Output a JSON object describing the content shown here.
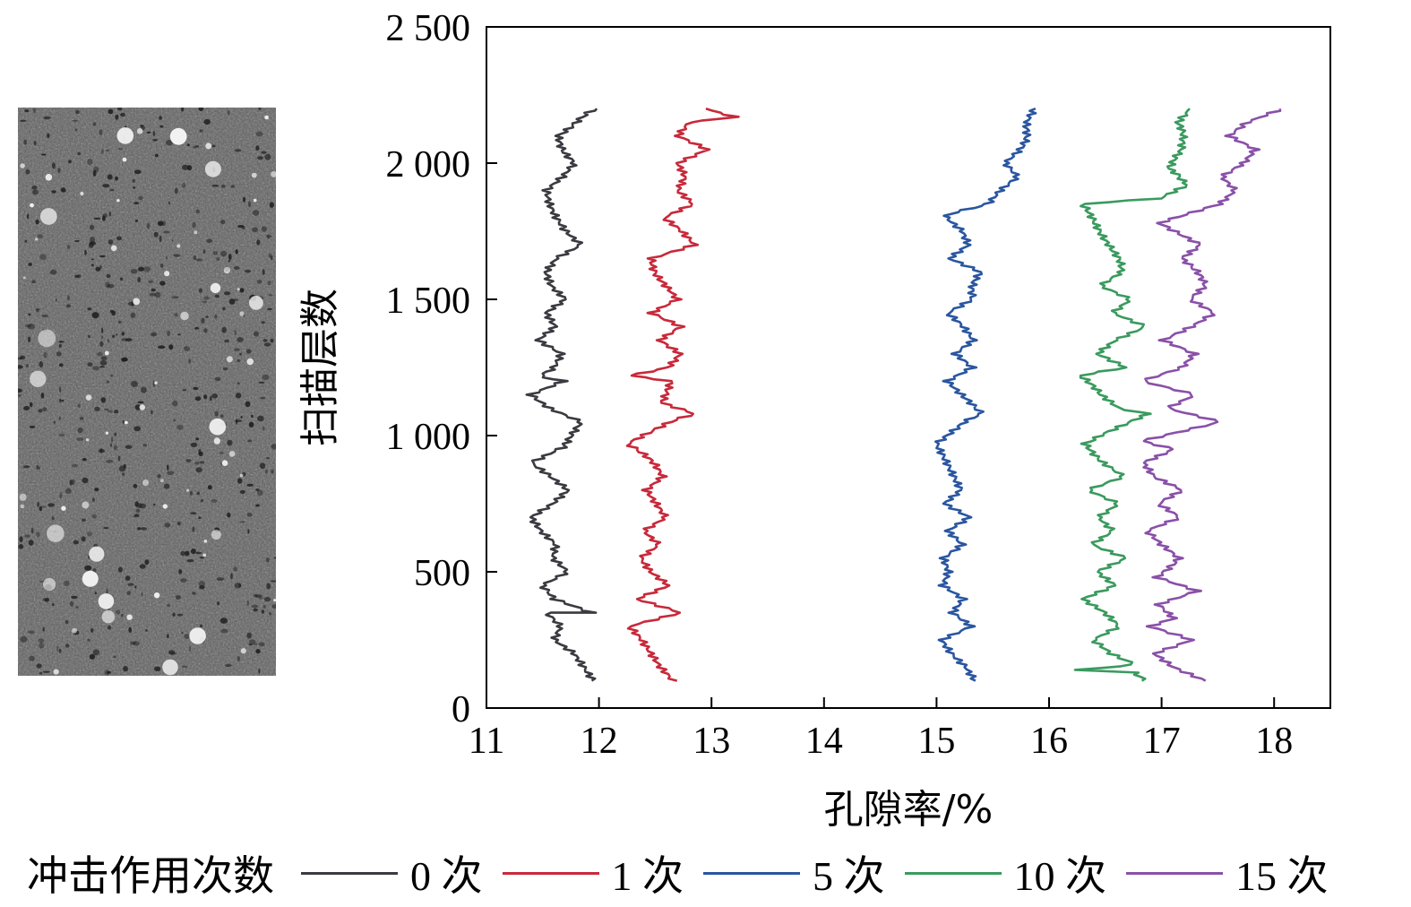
{
  "chart_data": {
    "type": "line",
    "xlabel": "孔隙率/%",
    "ylabel": "扫描层数",
    "xlim": [
      11,
      18.5
    ],
    "ylim": [
      0,
      2500
    ],
    "xticks": [
      "11",
      "12",
      "13",
      "14",
      "15",
      "16",
      "17",
      "18"
    ],
    "yticks": [
      "0",
      "500",
      "1 000",
      "1 500",
      "2 000",
      "2 500"
    ],
    "ytick_values": [
      0,
      500,
      1000,
      1500,
      2000,
      2500
    ],
    "grid": false,
    "legend_title": "冲击作用次数",
    "legend_position": "bottom",
    "series": [
      {
        "name": "0 次",
        "color": "#3a3a40",
        "x": [
          11.93,
          11.85,
          11.78,
          11.62,
          11.68,
          11.55,
          11.95,
          11.6,
          11.48,
          11.7,
          11.58,
          11.62,
          11.5,
          11.42,
          11.6,
          11.72,
          11.55,
          11.38,
          11.63,
          11.72,
          11.86,
          11.58,
          11.4,
          11.68,
          11.48,
          11.58,
          11.65,
          11.45,
          11.62,
          11.55,
          11.72,
          11.58,
          11.52,
          11.6,
          11.82,
          11.7,
          11.63,
          11.58,
          11.55,
          11.68,
          11.77,
          11.62,
          11.98
        ],
        "y": [
          100,
          150,
          200,
          250,
          300,
          350,
          350,
          400,
          450,
          500,
          550,
          600,
          650,
          700,
          750,
          800,
          850,
          900,
          950,
          970,
          1050,
          1100,
          1150,
          1200,
          1220,
          1250,
          1300,
          1350,
          1400,
          1450,
          1500,
          1550,
          1600,
          1650,
          1700,
          1750,
          1800,
          1850,
          1900,
          1950,
          2000,
          2100,
          2200
        ]
      },
      {
        "name": "1 次",
        "color": "#c8293a",
        "x": [
          12.65,
          12.55,
          12.48,
          12.4,
          12.28,
          12.72,
          12.32,
          12.6,
          12.45,
          12.38,
          12.55,
          12.42,
          12.6,
          12.5,
          12.4,
          12.55,
          12.48,
          12.25,
          12.65,
          12.85,
          12.55,
          12.62,
          12.3,
          12.6,
          12.72,
          12.55,
          12.75,
          12.48,
          12.7,
          12.58,
          12.45,
          12.85,
          12.75,
          12.6,
          12.85,
          12.7,
          12.75,
          12.68,
          12.95,
          12.7,
          12.82,
          13.2,
          12.95
        ],
        "y": [
          100,
          150,
          200,
          250,
          300,
          350,
          400,
          450,
          500,
          550,
          600,
          650,
          700,
          750,
          800,
          850,
          900,
          970,
          1050,
          1080,
          1120,
          1200,
          1220,
          1250,
          1300,
          1350,
          1400,
          1450,
          1500,
          1550,
          1650,
          1700,
          1750,
          1800,
          1850,
          1900,
          1950,
          2000,
          2050,
          2100,
          2150,
          2170,
          2200
        ]
      },
      {
        "name": "5 次",
        "color": "#2a56a0",
        "x": [
          15.35,
          15.28,
          15.15,
          15.05,
          15.3,
          15.12,
          15.22,
          15.05,
          15.12,
          15.08,
          15.25,
          15.1,
          15.28,
          15.05,
          15.2,
          14.98,
          15.25,
          15.42,
          15.2,
          15.08,
          15.32,
          15.18,
          15.35,
          15.25,
          15.1,
          15.3,
          15.38,
          15.12,
          15.3,
          15.25,
          15.1,
          15.15,
          15.45,
          15.55,
          15.7,
          15.6,
          15.75,
          15.82,
          15.88
        ],
        "y": [
          100,
          150,
          200,
          250,
          300,
          350,
          400,
          450,
          500,
          550,
          600,
          650,
          700,
          750,
          800,
          970,
          1050,
          1080,
          1150,
          1200,
          1250,
          1300,
          1350,
          1400,
          1450,
          1500,
          1600,
          1650,
          1700,
          1750,
          1800,
          1820,
          1850,
          1900,
          1950,
          2000,
          2050,
          2150,
          2200
        ]
      },
      {
        "name": "10 次",
        "color": "#3a9a5e",
        "x": [
          16.88,
          16.75,
          16.28,
          16.75,
          16.55,
          16.38,
          16.6,
          16.48,
          16.3,
          16.6,
          16.45,
          16.7,
          16.38,
          16.55,
          16.42,
          16.6,
          16.35,
          16.68,
          16.5,
          16.3,
          16.45,
          16.9,
          16.6,
          16.45,
          16.28,
          16.7,
          16.45,
          16.6,
          16.85,
          16.55,
          16.7,
          16.45,
          16.65,
          16.55,
          16.28,
          17.0,
          17.25,
          17.05,
          17.2,
          17.15,
          17.25
        ],
        "y": [
          100,
          130,
          140,
          160,
          200,
          250,
          300,
          350,
          400,
          450,
          500,
          550,
          600,
          650,
          700,
          750,
          800,
          850,
          900,
          970,
          1000,
          1080,
          1100,
          1150,
          1220,
          1250,
          1300,
          1350,
          1400,
          1450,
          1500,
          1550,
          1600,
          1700,
          1850,
          1870,
          1920,
          1980,
          2050,
          2150,
          2200
        ]
      },
      {
        "name": "15 次",
        "color": "#8a50a8",
        "x": [
          17.4,
          17.1,
          16.92,
          17.25,
          16.88,
          17.1,
          16.95,
          17.3,
          16.95,
          17.15,
          16.98,
          16.85,
          17.15,
          16.98,
          17.2,
          16.95,
          16.85,
          17.1,
          16.85,
          17.5,
          17.05,
          17.3,
          16.85,
          17.2,
          17.3,
          17.0,
          17.25,
          17.45,
          17.25,
          17.4,
          17.2,
          17.35,
          17.0,
          17.5,
          17.65,
          17.55,
          17.75,
          17.85,
          17.6,
          17.75,
          18.05
        ],
        "y": [
          100,
          150,
          200,
          250,
          300,
          330,
          380,
          430,
          480,
          550,
          600,
          650,
          700,
          750,
          800,
          850,
          900,
          950,
          980,
          1050,
          1100,
          1150,
          1200,
          1250,
          1300,
          1350,
          1400,
          1450,
          1500,
          1550,
          1650,
          1700,
          1780,
          1850,
          1900,
          1950,
          2000,
          2050,
          2100,
          2150,
          2200
        ]
      }
    ]
  }
}
